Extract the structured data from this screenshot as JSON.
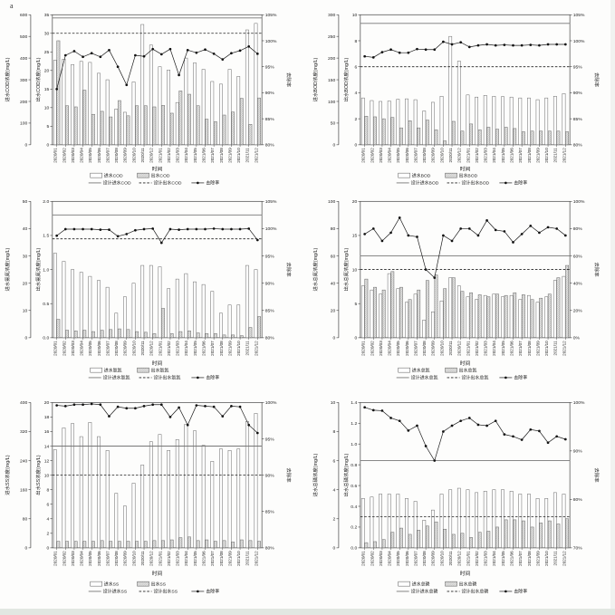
{
  "page": {
    "panel_label": "a"
  },
  "chart_data": [
    {
      "type": "bar",
      "name": "cod",
      "categories": [
        "2020/01",
        "2020/02",
        "2020/03",
        "2020/04",
        "2020/05",
        "2020/06",
        "2020/07",
        "2020/08",
        "2020/09",
        "2020/10",
        "2020/11",
        "2020/12",
        "2021/01",
        "2021/02",
        "2021/03",
        "2021/04",
        "2021/05",
        "2021/06",
        "2021/07",
        "2021/08",
        "2021/09",
        "2021/10",
        "2021/11",
        "2021/12"
      ],
      "series": [
        {
          "name": "进水COD",
          "kind": "bar",
          "axis": "left",
          "values": [
            390,
            395,
            370,
            385,
            380,
            330,
            300,
            165,
            150,
            290,
            555,
            460,
            360,
            345,
            195,
            400,
            378,
            348,
            292,
            280,
            348,
            315,
            530,
            560
          ]
        },
        {
          "name": "出水COD",
          "kind": "bar-hatched",
          "axis": "outlet",
          "values": [
            28,
            10.5,
            10.2,
            14.7,
            8.2,
            9.0,
            7.5,
            11.9,
            7.8,
            10.5,
            10.5,
            10.2,
            10.6,
            8.5,
            14.5,
            13.6,
            10.5,
            6.9,
            6.2,
            8.0,
            8.8,
            12.5,
            5.5,
            12.6
          ]
        },
        {
          "name": "去除率",
          "kind": "line",
          "axis": "removal",
          "values": [
            90.7,
            97.2,
            98.0,
            96.9,
            97.6,
            96.9,
            98.2,
            95.0,
            91.5,
            97.2,
            97.0,
            98.4,
            97.4,
            98.4,
            93.4,
            98.2,
            97.7,
            98.3,
            97.5,
            96.4,
            97.6,
            98.1,
            98.9,
            97.5
          ]
        }
      ],
      "design_lines": [
        {
          "name": "设计进水COD",
          "style": "solid",
          "axis": "left",
          "value": 585
        },
        {
          "name": "设计出水COD",
          "style": "dashed",
          "axis": "outlet",
          "value": 30
        }
      ],
      "axes": {
        "left": {
          "label": "进水COD浓度(mg/L)",
          "min": 0,
          "max": 600,
          "step": 100,
          "decimals": 0
        },
        "outlet": {
          "label": "出水COD浓度(mg/L)",
          "min": 0,
          "max": 35,
          "step": 5,
          "decimals": 0
        },
        "removal": {
          "label": "去除率",
          "min": 80,
          "max": 105,
          "step": 5,
          "decimals": 0,
          "suffix": "%"
        },
        "x": {
          "label": "时间"
        }
      },
      "legend_position": "bottom"
    },
    {
      "type": "bar",
      "name": "bod",
      "categories": [
        "2020/01",
        "2020/02",
        "2020/03",
        "2020/04",
        "2020/05",
        "2020/06",
        "2020/07",
        "2020/08",
        "2020/09",
        "2020/10",
        "2020/11",
        "2020/12",
        "2021/01",
        "2021/02",
        "2021/03",
        "2021/04",
        "2021/05",
        "2021/06",
        "2021/07",
        "2021/08",
        "2021/09",
        "2021/10",
        "2021/11",
        "2021/12"
      ],
      "series": [
        {
          "name": "进水BOD",
          "kind": "bar",
          "axis": "left",
          "values": [
            108,
            102,
            100,
            101,
            105,
            106,
            104,
            78,
            98,
            112,
            250,
            193,
            115,
            110,
            114,
            112,
            111,
            110,
            108,
            108,
            104,
            108,
            112,
            118
          ]
        },
        {
          "name": "出水BOD",
          "kind": "bar-hatched",
          "axis": "outlet",
          "values": [
            2.2,
            2.15,
            2.0,
            2.1,
            1.3,
            1.85,
            1.3,
            1.9,
            1.15,
            0.3,
            1.8,
            1.05,
            1.6,
            1.15,
            1.35,
            1.2,
            1.35,
            1.25,
            1.0,
            1.05,
            1.05,
            1.05,
            1.05,
            1.0
          ]
        },
        {
          "name": "去除率",
          "kind": "line",
          "axis": "removal",
          "values": [
            97.0,
            96.8,
            97.8,
            98.3,
            97.7,
            97.7,
            98.4,
            98.3,
            98.3,
            99.8,
            99.3,
            99.7,
            98.8,
            99.1,
            99.3,
            99.1,
            99.2,
            99.1,
            99.1,
            99.2,
            99.1,
            99.3,
            99.3,
            99.3
          ]
        }
      ],
      "design_lines": [
        {
          "name": "设计进水BOD",
          "style": "solid",
          "axis": "left",
          "value": 280
        },
        {
          "name": "设计出水BOD",
          "style": "dashed",
          "axis": "outlet",
          "value": 6
        }
      ],
      "axes": {
        "left": {
          "label": "进水BOD浓度(mg/L)",
          "min": 0,
          "max": 300,
          "step": 50,
          "decimals": 0
        },
        "outlet": {
          "label": "出水BOD浓度(mg/L)",
          "min": 0,
          "max": 10,
          "step": 2,
          "decimals": 0
        },
        "removal": {
          "label": "去除率",
          "min": 80,
          "max": 105,
          "step": 5,
          "decimals": 0,
          "suffix": "%"
        },
        "x": {
          "label": "时间"
        }
      },
      "legend_position": "bottom"
    },
    {
      "type": "bar",
      "name": "ammonia",
      "categories": [
        "2020/01",
        "2020/02",
        "2020/03",
        "2020/04",
        "2020/05",
        "2020/06",
        "2020/07",
        "2020/08",
        "2020/09",
        "2020/10",
        "2020/11",
        "2020/12",
        "2021/01",
        "2021/02",
        "2021/03",
        "2021/04",
        "2021/05",
        "2021/06",
        "2021/07",
        "2021/08",
        "2021/09",
        "2021/10",
        "2021/11",
        "2021/12"
      ],
      "series": [
        {
          "name": "进水氨氮",
          "kind": "bar",
          "axis": "left",
          "values": [
            31,
            28,
            25,
            24,
            22.5,
            21,
            18.5,
            9,
            15,
            20,
            26.5,
            26.5,
            26,
            18,
            21.5,
            23.5,
            20.5,
            19.5,
            17,
            9,
            12,
            12,
            26.5,
            25
          ]
        },
        {
          "name": "出水氨氮",
          "kind": "bar-hatched",
          "axis": "outlet",
          "values": [
            0.27,
            0.11,
            0.1,
            0.11,
            0.09,
            0.11,
            0.12,
            0.13,
            0.12,
            0.09,
            0.08,
            0.06,
            0.43,
            0.06,
            0.09,
            0.1,
            0.07,
            0.06,
            0.06,
            0.04,
            0.04,
            0.03,
            0.15,
            0.31
          ]
        },
        {
          "name": "去除率",
          "kind": "line",
          "axis": "removal",
          "values": [
            98.7,
            99.9,
            99.9,
            99.9,
            99.9,
            99.8,
            99.8,
            98.6,
            99.0,
            99.7,
            99.9,
            100.0,
            97.4,
            99.9,
            99.8,
            99.9,
            99.9,
            99.9,
            100.0,
            99.9,
            99.9,
            99.9,
            100.0,
            97.9
          ]
        }
      ],
      "design_lines": [
        {
          "name": "设计进水氨氮",
          "style": "solid",
          "axis": "left",
          "value": 45
        },
        {
          "name": "设计出水氨氮",
          "style": "dashed",
          "axis": "outlet",
          "value": 1.45
        }
      ],
      "axes": {
        "left": {
          "label": "进水氨氮浓度(mg/L)",
          "min": 0,
          "max": 50,
          "step": 10,
          "decimals": 0
        },
        "outlet": {
          "label": "出水氨氮浓度(mg/L)",
          "min": 0,
          "max": 2.0,
          "step": 0.5,
          "decimals": 1
        },
        "removal": {
          "label": "去除率",
          "min": 80,
          "max": 105,
          "step": 5,
          "decimals": 0,
          "suffix": "%"
        },
        "x": {
          "label": "时间"
        }
      },
      "legend_position": "bottom"
    },
    {
      "type": "bar",
      "name": "total-nitrogen",
      "categories": [
        "2020/01",
        "2020/02",
        "2020/03",
        "2020/04",
        "2020/05",
        "2020/06",
        "2020/07",
        "2020/08",
        "2020/09",
        "2020/10",
        "2020/11",
        "2020/12",
        "2021/01",
        "2021/02",
        "2021/03",
        "2021/04",
        "2021/05",
        "2021/06",
        "2021/07",
        "2021/08",
        "2021/09",
        "2021/10",
        "2021/11",
        "2021/12"
      ],
      "series": [
        {
          "name": "进水总氮",
          "kind": "bar",
          "axis": "left",
          "values": [
            38,
            35,
            32,
            47,
            36,
            26,
            32,
            13,
            19,
            27,
            44,
            38,
            30,
            28,
            31,
            32,
            30,
            31,
            28,
            31,
            26,
            30,
            42,
            45
          ]
        },
        {
          "name": "出水总氮",
          "kind": "bar-hatched",
          "axis": "outlet",
          "values": [
            8.6,
            7.4,
            7.0,
            9.7,
            7.4,
            5.6,
            7.0,
            8.4,
            9.2,
            7.2,
            8.8,
            6.8,
            6.6,
            6.3,
            6.0,
            6.4,
            6.2,
            6.6,
            6.3,
            5.6,
            5.8,
            6.4,
            8.8,
            10.6
          ]
        },
        {
          "name": "去除率",
          "kind": "line",
          "axis": "removal",
          "values": [
            76,
            80,
            71,
            77,
            88,
            75,
            74,
            50,
            44,
            75,
            71,
            80,
            80,
            75,
            86,
            79,
            78,
            70,
            76,
            82,
            77,
            81,
            80,
            75
          ]
        }
      ],
      "design_lines": [
        {
          "name": "设计进水总氮",
          "style": "solid",
          "axis": "left",
          "value": 60
        },
        {
          "name": "设计出水总氮",
          "style": "dashed",
          "axis": "outlet",
          "value": 10
        }
      ],
      "axes": {
        "left": {
          "label": "进水总氮浓度(mg/L)",
          "min": 0,
          "max": 100,
          "step": 20,
          "decimals": 0
        },
        "outlet": {
          "label": "出水总氮浓度(mg/L)",
          "min": 0,
          "max": 20,
          "step": 5,
          "decimals": 0
        },
        "removal": {
          "label": "去除率",
          "min": 0,
          "max": 100,
          "step": 20,
          "decimals": 0,
          "suffix": "%"
        },
        "x": {
          "label": "时间"
        }
      },
      "legend_position": "bottom"
    },
    {
      "type": "bar",
      "name": "ss",
      "categories": [
        "2020/01",
        "2020/02",
        "2020/03",
        "2020/04",
        "2020/05",
        "2020/06",
        "2020/07",
        "2020/08",
        "2020/09",
        "2020/10",
        "2020/11",
        "2020/12",
        "2021/01",
        "2021/02",
        "2021/03",
        "2021/04",
        "2021/05",
        "2021/06",
        "2021/07",
        "2021/08",
        "2021/09",
        "2021/10",
        "2021/11",
        "2021/12"
      ],
      "series": [
        {
          "name": "进水SS",
          "kind": "bar",
          "axis": "left",
          "values": [
            270,
            330,
            342,
            306,
            345,
            306,
            268,
            150,
            115,
            178,
            228,
            292,
            312,
            268,
            298,
            340,
            322,
            282,
            238,
            272,
            268,
            272,
            348,
            370
          ]
        },
        {
          "name": "出水SS",
          "kind": "bar-hatched",
          "axis": "outlet",
          "values": [
            0.9,
            0.9,
            0.9,
            0.9,
            0.9,
            1.0,
            0.9,
            0.9,
            0.9,
            0.9,
            0.9,
            1.0,
            1.0,
            1.1,
            1.4,
            1.5,
            1.0,
            1.1,
            0.9,
            1.0,
            0.8,
            1.1,
            1.0,
            0.9
          ]
        },
        {
          "name": "去除率",
          "kind": "line",
          "axis": "removal",
          "values": [
            99.6,
            99.5,
            99.7,
            99.7,
            99.8,
            99.7,
            98.1,
            99.4,
            99.2,
            99.2,
            99.5,
            99.7,
            99.7,
            98.0,
            99.3,
            96.9,
            99.6,
            99.5,
            99.4,
            98.1,
            99.5,
            99.4,
            96.9,
            95.8
          ]
        }
      ],
      "design_lines": [
        {
          "name": "设计进水SS",
          "style": "solid",
          "axis": "left",
          "value": 280
        },
        {
          "name": "设计出水SS",
          "style": "dashed",
          "axis": "outlet",
          "value": 10
        }
      ],
      "axes": {
        "left": {
          "label": "进水SS浓度(mg/L)",
          "min": 0,
          "max": 400,
          "step": 80,
          "decimals": 0
        },
        "outlet": {
          "label": "出水SS浓度(mg/L)",
          "min": 0,
          "max": 20,
          "step": 2,
          "decimals": 0
        },
        "removal": {
          "label": "去除率",
          "min": 80,
          "max": 100,
          "step": 5,
          "decimals": 0,
          "suffix": "%"
        },
        "x": {
          "label": "时间"
        }
      },
      "legend_position": "bottom"
    },
    {
      "type": "bar",
      "name": "total-phosphorus",
      "categories": [
        "2020/01",
        "2020/02",
        "2020/03",
        "2020/04",
        "2020/05",
        "2020/06",
        "2020/07",
        "2020/08",
        "2020/09",
        "2020/10",
        "2020/11",
        "2020/12",
        "2021/01",
        "2021/02",
        "2021/03",
        "2021/04",
        "2021/05",
        "2021/06",
        "2021/07",
        "2021/08",
        "2021/09",
        "2021/10",
        "2021/11",
        "2021/12"
      ],
      "series": [
        {
          "name": "进水总磷",
          "kind": "bar",
          "axis": "left",
          "values": [
            3.4,
            3.5,
            3.7,
            3.7,
            3.7,
            3.4,
            3.2,
            1.9,
            2.6,
            3.7,
            4.0,
            4.1,
            4.0,
            3.8,
            3.9,
            4.0,
            4.0,
            3.9,
            3.7,
            3.7,
            3.4,
            3.4,
            3.8,
            3.7
          ]
        },
        {
          "name": "出水总磷",
          "kind": "bar-hatched",
          "axis": "outlet",
          "values": [
            0.05,
            0.06,
            0.08,
            0.15,
            0.19,
            0.13,
            0.17,
            0.21,
            0.25,
            0.18,
            0.13,
            0.14,
            0.1,
            0.15,
            0.16,
            0.2,
            0.27,
            0.27,
            0.26,
            0.2,
            0.24,
            0.26,
            0.23,
            0.28
          ]
        },
        {
          "name": "去除率",
          "kind": "line",
          "axis": "removal",
          "values": [
            99.0,
            98.4,
            98.3,
            96.8,
            96.2,
            94.2,
            95.2,
            91.0,
            88.0,
            94.0,
            95.2,
            96.2,
            96.8,
            95.4,
            95.2,
            96.2,
            93.4,
            93.0,
            92.3,
            94.4,
            94.1,
            91.7,
            93.0,
            92.4
          ]
        }
      ],
      "design_lines": [
        {
          "name": "设计进水总磷",
          "style": "solid",
          "axis": "left",
          "value": 6
        },
        {
          "name": "设计出水总磷",
          "style": "dashed",
          "axis": "outlet",
          "value": 0.3
        }
      ],
      "axes": {
        "left": {
          "label": "进水总磷浓度(mg/L)",
          "min": 0,
          "max": 10,
          "step": 2,
          "decimals": 0
        },
        "outlet": {
          "label": "出水总磷浓度(mg/L)",
          "min": 0,
          "max": 1.4,
          "step": 0.2,
          "decimals": 1
        },
        "removal": {
          "label": "去除率",
          "min": 70,
          "max": 100,
          "step": 10,
          "decimals": 0,
          "suffix": "%"
        },
        "x": {
          "label": "时间"
        }
      },
      "legend_position": "bottom"
    }
  ]
}
